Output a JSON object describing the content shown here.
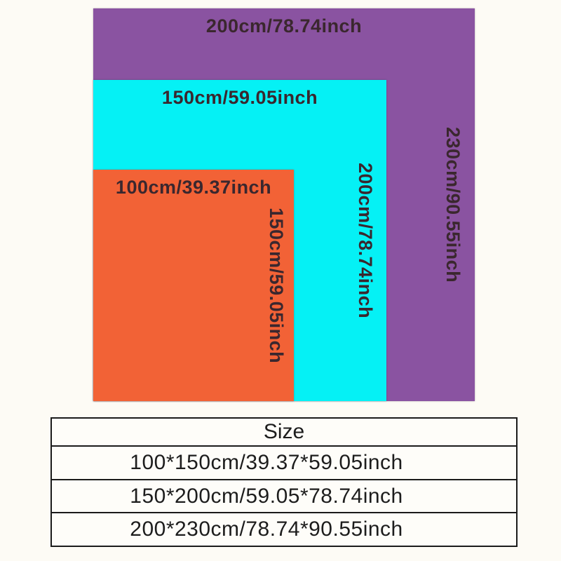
{
  "page": {
    "background": "#fdfbf5"
  },
  "diagram": {
    "label_color": "#3a272e",
    "rects": [
      {
        "id": "purple",
        "color": "#8a53a1",
        "top_label": "200cm/78.74inch",
        "side_label": "230cm/90.55inch"
      },
      {
        "id": "cyan",
        "color": "#05f1f5",
        "top_label": "150cm/59.05inch",
        "side_label": "200cm/78.74inch"
      },
      {
        "id": "orange",
        "color": "#f26236",
        "top_label": "100cm/39.37inch",
        "side_label": "150cm/59.05inch"
      }
    ]
  },
  "size_table": {
    "header": "Size",
    "rows": [
      "100*150cm/39.37*59.05inch",
      "150*200cm/59.05*78.74inch",
      "200*230cm/78.74*90.55inch"
    ]
  }
}
